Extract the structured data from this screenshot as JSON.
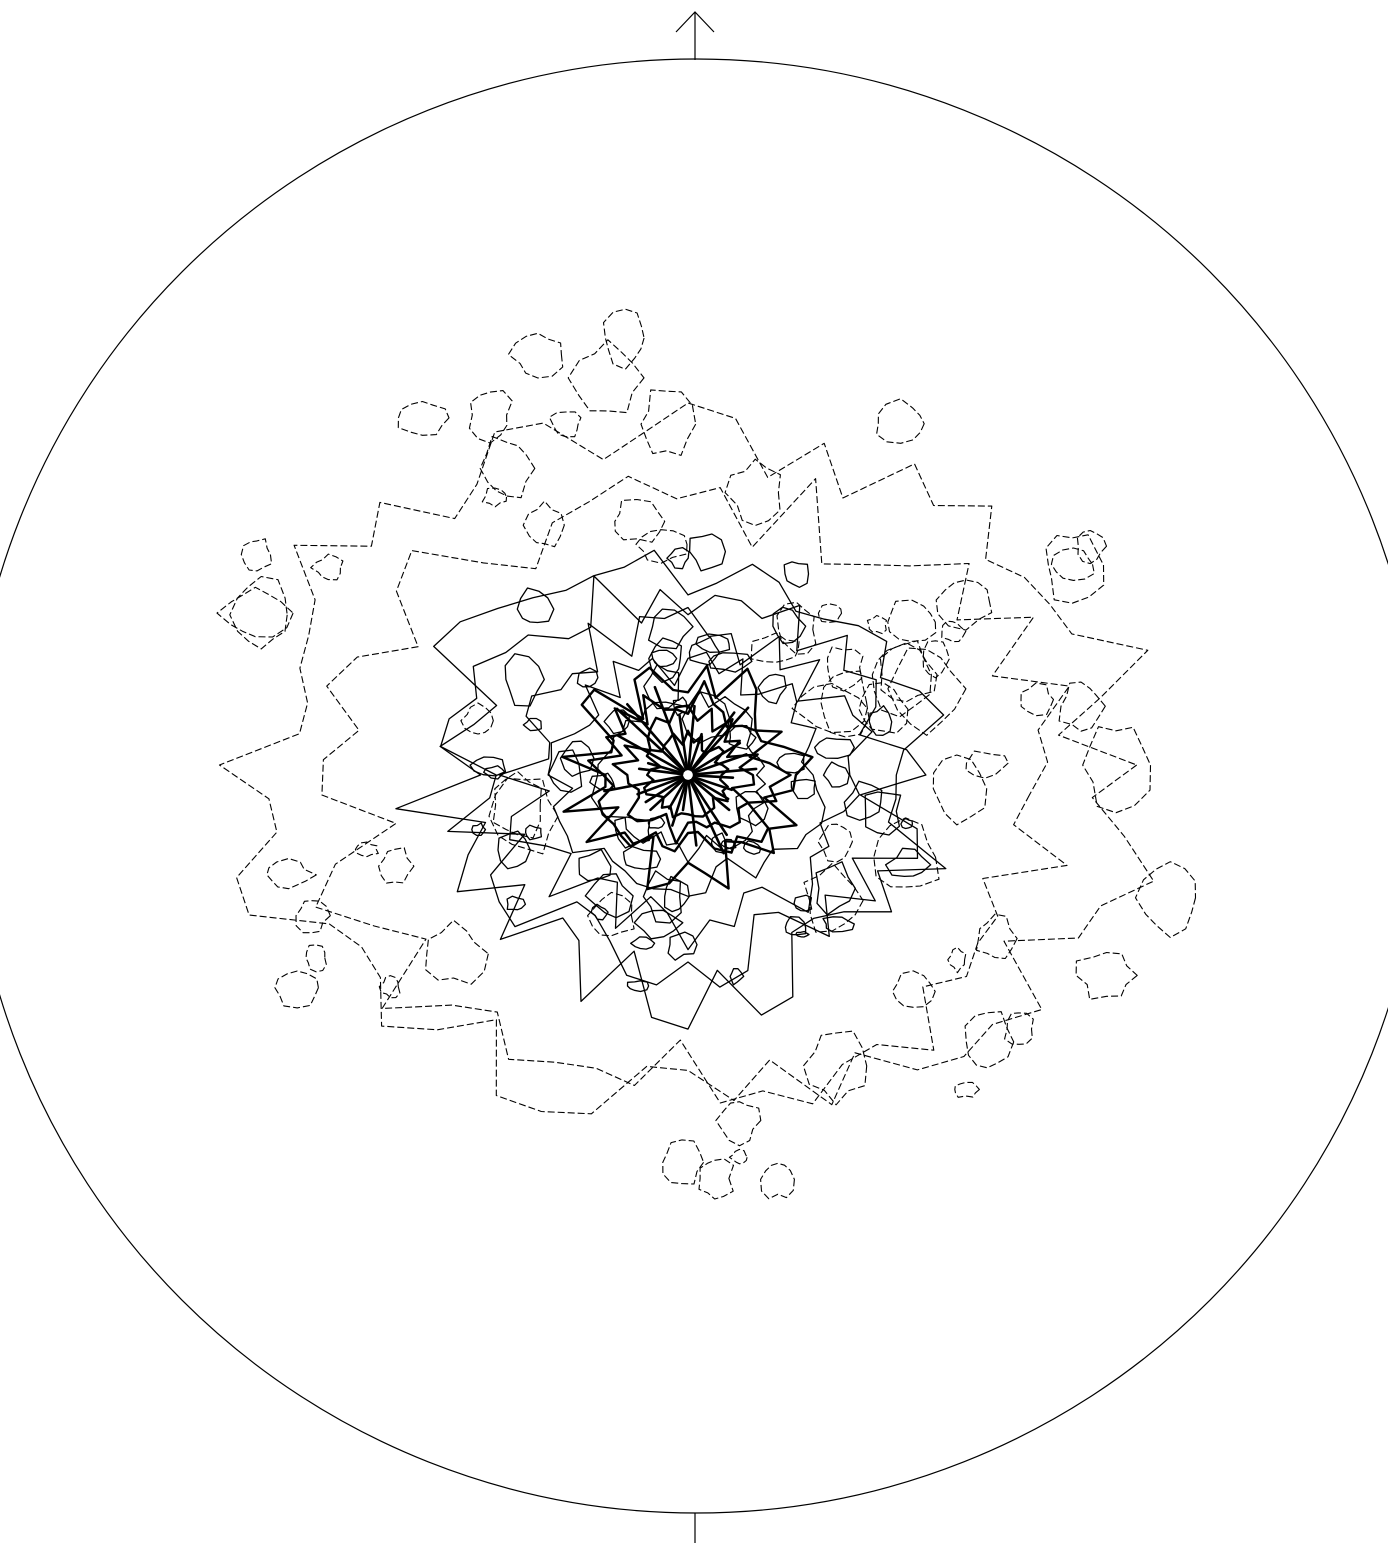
{
  "diagram": {
    "type": "stereonet-density-contour",
    "colors": {
      "background": "#ffffff",
      "line": "#000000"
    },
    "north_arrow": {
      "icon": "up-arrow-icon"
    },
    "south_tick": {
      "icon": "tick-mark-icon"
    }
  }
}
